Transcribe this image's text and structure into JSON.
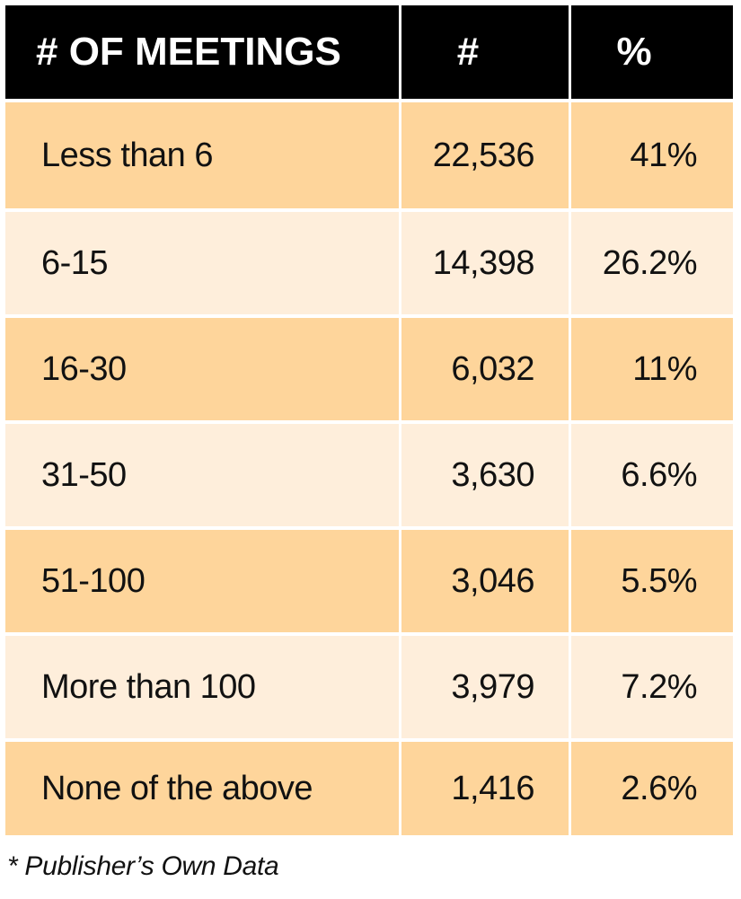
{
  "table": {
    "headers": [
      "# OF MEETINGS",
      "#",
      "%"
    ],
    "rows": [
      {
        "label": "Less than 6",
        "count": "22,536",
        "percent": "41%"
      },
      {
        "label": "6-15",
        "count": "14,398",
        "percent": "26.2%"
      },
      {
        "label": "16-30",
        "count": "6,032",
        "percent": "11%"
      },
      {
        "label": "31-50",
        "count": "3,630",
        "percent": "6.6%"
      },
      {
        "label": "51-100",
        "count": "3,046",
        "percent": "5.5%"
      },
      {
        "label": "More than 100",
        "count": "3,979",
        "percent": "7.2%"
      },
      {
        "label": "None of the above",
        "count": "1,416",
        "percent": "2.6%"
      }
    ]
  },
  "footnote": "* Publisher’s Own Data",
  "colors": {
    "header_bg": "#000000",
    "header_text": "#ffffff",
    "row_dark": "#fed59b",
    "row_light": "#feeedb"
  }
}
